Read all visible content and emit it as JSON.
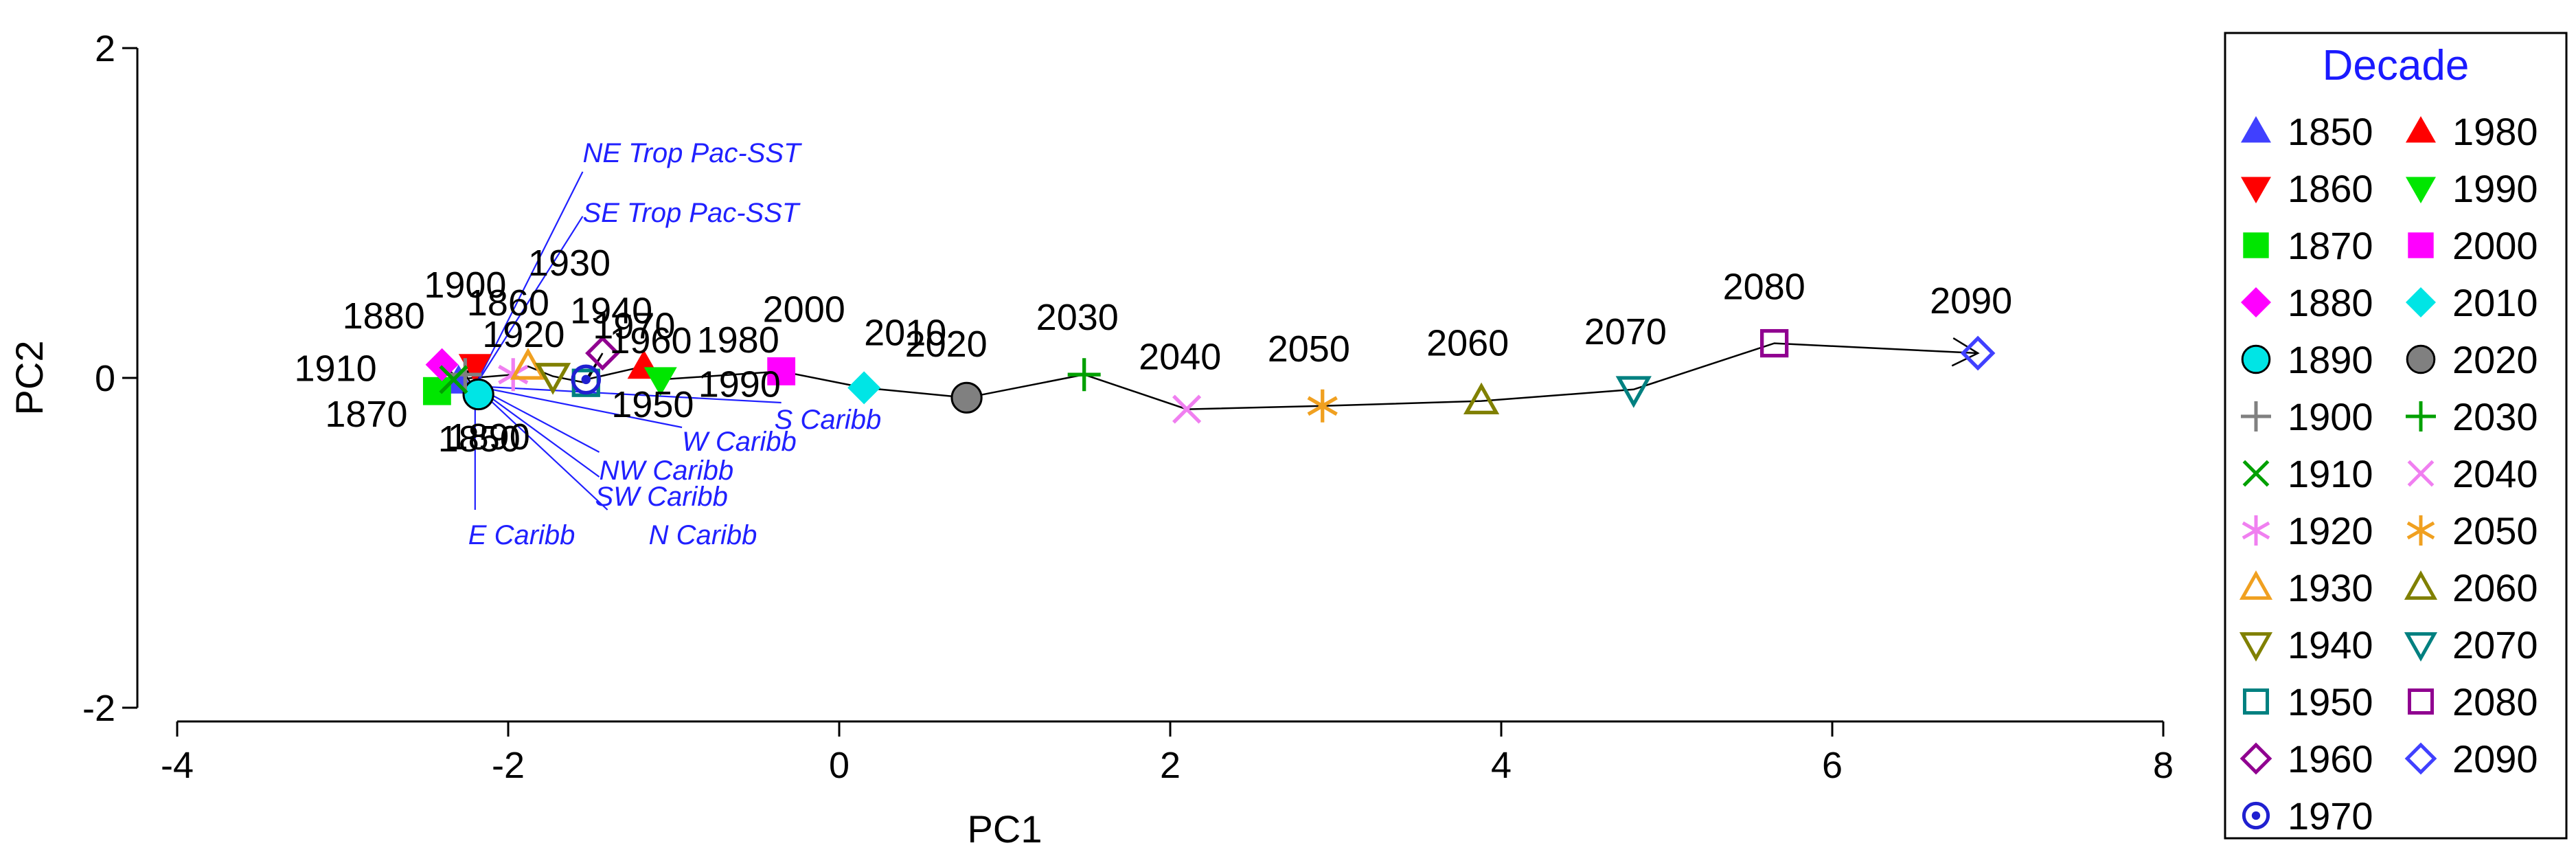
{
  "chart_data": {
    "type": "scatter",
    "xlabel": "PC1",
    "ylabel": "PC2",
    "xlim": [
      -4,
      8
    ],
    "ylim": [
      -2,
      2
    ],
    "xticks": [
      -4,
      -2,
      0,
      2,
      4,
      6,
      8
    ],
    "yticks": [
      -2,
      0,
      2
    ],
    "legend_title": "Decade",
    "legend_position": "right",
    "trajectory": {
      "description_color": "#000000",
      "points": [
        {
          "decade": "1850",
          "x": -2.3,
          "y": -0.02,
          "marker": "triangle-up-filled",
          "color": "#4040ff",
          "label": "1850"
        },
        {
          "decade": "1860",
          "x": -2.2,
          "y": 0.07,
          "marker": "triangle-down-filled",
          "color": "#ff0000",
          "label": "1860"
        },
        {
          "decade": "1870",
          "x": -2.43,
          "y": -0.08,
          "marker": "square-filled",
          "color": "#00e600",
          "label": "1870"
        },
        {
          "decade": "1880",
          "x": -2.4,
          "y": 0.08,
          "marker": "diamond-filled",
          "color": "#ff00ff",
          "label": "1880"
        },
        {
          "decade": "1890",
          "x": -2.18,
          "y": -0.1,
          "marker": "circle-filled",
          "color": "#00e5e5",
          "label": "1890"
        },
        {
          "decade": "1900",
          "x": -2.26,
          "y": 0.02,
          "marker": "plus",
          "color": "#808080",
          "label": "1900"
        },
        {
          "decade": "1910",
          "x": -2.33,
          "y": -0.01,
          "marker": "x",
          "color": "#00a000",
          "label": "1910"
        },
        {
          "decade": "1920",
          "x": -1.97,
          "y": 0.02,
          "marker": "asterisk",
          "color": "#f07ff0",
          "label": "1920"
        },
        {
          "decade": "1930",
          "x": -1.88,
          "y": 0.07,
          "marker": "triangle-up-open",
          "color": "#f0a020",
          "label": "1930"
        },
        {
          "decade": "1940",
          "x": -1.73,
          "y": 0.01,
          "marker": "triangle-down-open",
          "color": "#808000",
          "label": "1940"
        },
        {
          "decade": "1950",
          "x": -1.53,
          "y": -0.03,
          "marker": "square-open",
          "color": "#008080",
          "label": "1950"
        },
        {
          "decade": "1960",
          "x": -1.43,
          "y": 0.15,
          "marker": "diamond-open",
          "color": "#900090",
          "label": "1960"
        },
        {
          "decade": "1970",
          "x": -1.53,
          "y": -0.01,
          "marker": "circle-dot",
          "color": "#2020d0",
          "label": "1970"
        },
        {
          "decade": "1980",
          "x": -1.18,
          "y": 0.07,
          "marker": "triangle-up-filled",
          "color": "#ff0000",
          "label": "1980"
        },
        {
          "decade": "1990",
          "x": -1.08,
          "y": -0.01,
          "marker": "triangle-down-filled",
          "color": "#00e600",
          "label": "1990"
        },
        {
          "decade": "2000",
          "x": -0.35,
          "y": 0.04,
          "marker": "square-filled",
          "color": "#ff00ff",
          "label": "2000"
        },
        {
          "decade": "2010",
          "x": 0.15,
          "y": -0.06,
          "marker": "diamond-filled",
          "color": "#00e5e5",
          "label": "2010"
        },
        {
          "decade": "2020",
          "x": 0.77,
          "y": -0.12,
          "marker": "circle-filled",
          "color": "#808080",
          "label": "2020"
        },
        {
          "decade": "2030",
          "x": 1.48,
          "y": 0.02,
          "marker": "plus",
          "color": "#00a000",
          "label": "2030"
        },
        {
          "decade": "2040",
          "x": 2.1,
          "y": -0.19,
          "marker": "x",
          "color": "#f07ff0",
          "label": "2040"
        },
        {
          "decade": "2050",
          "x": 2.92,
          "y": -0.17,
          "marker": "asterisk",
          "color": "#f0a020",
          "label": "2050"
        },
        {
          "decade": "2060",
          "x": 3.88,
          "y": -0.14,
          "marker": "triangle-up-open",
          "color": "#808000",
          "label": "2060"
        },
        {
          "decade": "2070",
          "x": 4.8,
          "y": -0.07,
          "marker": "triangle-down-open",
          "color": "#008080",
          "label": "2070"
        },
        {
          "decade": "2080",
          "x": 5.65,
          "y": 0.21,
          "marker": "square-open",
          "color": "#900090",
          "label": "2080"
        },
        {
          "decade": "2090",
          "x": 6.88,
          "y": 0.15,
          "marker": "diamond-open",
          "color": "#4040ff",
          "label": "2090"
        }
      ]
    },
    "loadings": {
      "color": "#2020ff",
      "origin": [
        -2.2,
        -0.05
      ],
      "vectors": [
        {
          "name": "NE Trop Pac-SST",
          "x": -1.55,
          "y": 1.25
        },
        {
          "name": "SE Trop Pac-SST",
          "x": -1.55,
          "y": 0.98
        },
        {
          "name": "S Caribb",
          "x": -0.35,
          "y": -0.15
        },
        {
          "name": "W Caribb",
          "x": -0.95,
          "y": -0.3
        },
        {
          "name": "NW Caribb",
          "x": -1.45,
          "y": -0.45
        },
        {
          "name": "SW Caribb",
          "x": -1.45,
          "y": -0.6
        },
        {
          "name": "N Caribb",
          "x": -1.4,
          "y": -0.8
        },
        {
          "name": "E Caribb",
          "x": -2.2,
          "y": -0.8
        }
      ]
    },
    "legend": {
      "title": "Decade",
      "columns": [
        [
          "1850",
          "1860",
          "1870",
          "1880",
          "1890",
          "1900",
          "1910",
          "1920",
          "1930",
          "1940",
          "1950",
          "1960",
          "1970"
        ],
        [
          "1980",
          "1990",
          "2000",
          "2010",
          "2020",
          "2030",
          "2040",
          "2050",
          "2060",
          "2070",
          "2080",
          "2090"
        ]
      ]
    }
  }
}
